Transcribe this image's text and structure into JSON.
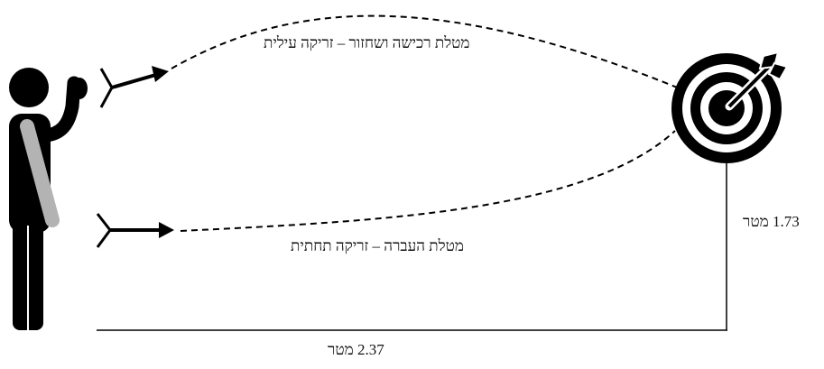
{
  "labels": {
    "overhand_throw": "מטלת רכישה ושחזור – זריקה עילית",
    "underhand_throw": "מטלת העברה – זריקה תחתית",
    "target_height": "1.73 מטר",
    "throw_distance": "2.37 מטר"
  },
  "icons": {
    "thrower": "person-throwing-icon",
    "target": "bullseye-target-icon",
    "upper_dart": "dart-icon",
    "lower_dart": "dart-icon"
  },
  "colors": {
    "ink": "#000000",
    "sleeve": "#b3b3b3",
    "background": "#ffffff"
  }
}
